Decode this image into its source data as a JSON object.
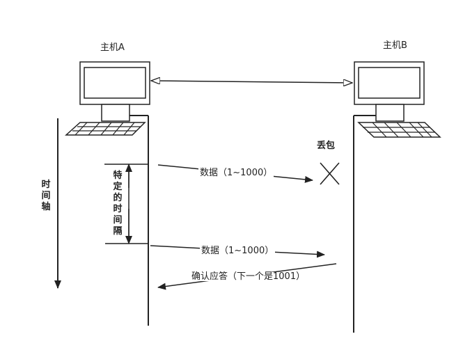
{
  "hosts": {
    "a": "主机A",
    "b": "主机B"
  },
  "time_axis": "时间轴",
  "interval": "特定的时间隔",
  "packet_loss": "丢包",
  "messages": [
    "数据（1~1000）",
    "数据（1~1000）",
    "确认应答（下一个是1001）"
  ]
}
